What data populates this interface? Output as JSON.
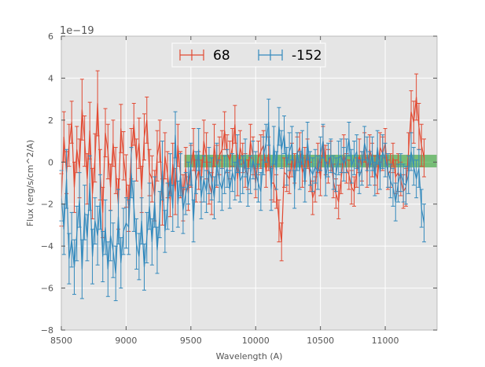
{
  "chart_data": {
    "type": "line",
    "title": "",
    "xlabel": "Wavelength (A)",
    "ylabel": "Flux (erg/s/cm^2/A)",
    "offset_text": "1e−19",
    "xlim": [
      8500,
      11400
    ],
    "ylim": [
      -8,
      6
    ],
    "xticks": [
      8500,
      9000,
      9500,
      10000,
      10500,
      11000
    ],
    "xtick_labels": [
      "8500",
      "9000",
      "9500",
      "10000",
      "10500",
      "11000"
    ],
    "yticks": [
      -8,
      -6,
      -4,
      -2,
      0,
      2,
      4,
      6
    ],
    "ytick_labels": [
      "−8",
      "−6",
      "−4",
      "−2",
      "0",
      "2",
      "4",
      "6"
    ],
    "grid": true,
    "legend_position": "top-center",
    "shaded_region": {
      "x": [
        9450,
        11400
      ],
      "y": [
        -0.25,
        0.35
      ],
      "color": "#2ca02c"
    },
    "series": [
      {
        "name": "68",
        "color": "#e24a33",
        "x_start": 8500,
        "x_step": 20,
        "values": [
          -1.8,
          1.2,
          -0.5,
          0.8,
          1.9,
          -1.2,
          0.6,
          -0.3,
          2.5,
          1.0,
          -0.8,
          1.5,
          -1.5,
          0.2,
          2.8,
          -0.6,
          -2.4,
          1.4,
          0.5,
          -1.2,
          0.9,
          -0.4,
          -2.0,
          1.6,
          0.3,
          -0.9,
          -2.2,
          0.4,
          1.8,
          0.1,
          0.9,
          -1.3,
          1.2,
          2.0,
          -0.5,
          -0.8,
          -1.6,
          0.3,
          1.0,
          -1.9,
          0.3,
          -0.6,
          -1.8,
          -0.1,
          -1.4,
          0.8,
          -0.6,
          -1.7,
          -0.3,
          -1.5,
          -0.2,
          0.6,
          -0.9,
          -0.4,
          -0.9,
          1.0,
          0.3,
          -1.0,
          -1.5,
          0.8,
          -0.2,
          0.3,
          0.6,
          1.5,
          0.4,
          0.1,
          0.7,
          1.8,
          -0.8,
          0.7,
          0.2,
          -0.4,
          -0.6,
          1.0,
          0.3,
          -1.0,
          0.2,
          0.5,
          0.8,
          -0.5,
          0.4,
          -1.0,
          -1.0,
          -1.4,
          -2.8,
          -3.8,
          -0.5,
          -0.6,
          -0.8,
          0.1,
          -0.3,
          0.4,
          0.7,
          -0.5,
          -0.1,
          0.4,
          -0.7,
          -1.7,
          -1.3,
          0.2,
          -0.8,
          1.0,
          0.1,
          -0.2,
          0.3,
          -0.9,
          -1.5,
          -1.9,
          -0.8,
          0.4,
          -0.3,
          -0.6,
          -1.2,
          -1.4,
          -0.5,
          0.3,
          -0.2,
          0.7,
          -0.5,
          0.6,
          0.1,
          -0.4,
          -0.8,
          0.7,
          0.4,
          0.9,
          -0.6,
          -0.4,
          0.2,
          -0.7,
          -0.5,
          -0.8,
          -1.4,
          -1.2,
          0.5,
          2.4,
          1.9,
          3.1,
          1.7,
          0.8,
          0.2
        ],
        "errors": [
          1.25,
          1.2,
          1.0,
          1.0,
          1.0,
          1.2,
          1.1,
          1.4,
          1.45,
          1.2,
          1.2,
          1.35,
          1.2,
          1.15,
          1.55,
          1.2,
          1.2,
          1.15,
          1.3,
          1.1,
          1.1,
          1.1,
          1.2,
          1.15,
          1.15,
          1.25,
          1.1,
          1.2,
          1.0,
          1.0,
          1.2,
          1.1,
          1.1,
          1.1,
          1.1,
          1.1,
          1.2,
          1.2,
          1.0,
          1.1,
          1.1,
          1.1,
          0.8,
          1.0,
          1.1,
          1.0,
          1.1,
          1.1,
          1.0,
          0.8,
          1.0,
          1.0,
          1.0,
          0.9,
          1.0,
          1.0,
          1.1,
          1.0,
          1.0,
          1.0,
          1.0,
          0.9,
          0.9,
          0.9,
          0.9,
          0.9,
          0.9,
          0.9,
          0.8,
          0.8,
          0.7,
          0.8,
          0.7,
          0.8,
          0.9,
          0.7,
          0.8,
          0.8,
          0.7,
          0.7,
          0.8,
          0.8,
          0.9,
          0.8,
          1.0,
          0.9,
          0.7,
          0.8,
          0.7,
          0.8,
          0.7,
          0.8,
          0.7,
          0.7,
          0.8,
          0.7,
          0.7,
          0.8,
          0.6,
          0.7,
          0.8,
          0.7,
          0.7,
          0.8,
          0.7,
          0.8,
          0.7,
          0.8,
          0.7,
          0.9,
          0.7,
          0.7,
          0.8,
          0.7,
          0.7,
          0.8,
          0.7,
          0.7,
          0.7,
          0.7,
          0.8,
          0.7,
          0.7,
          0.7,
          0.8,
          0.7,
          0.7,
          0.8,
          0.7,
          0.8,
          0.9,
          0.8,
          0.8,
          0.9,
          0.9,
          1.0,
          1.0,
          1.1,
          1.1,
          1.0,
          0.9
        ]
      },
      {
        "name": "-152",
        "color": "#348abd",
        "x_start": 8500,
        "x_step": 20,
        "values": [
          -1.6,
          -3.2,
          -0.8,
          -4.6,
          -3.7,
          -5.0,
          -3.4,
          -1.8,
          -5.1,
          -2.4,
          -3.6,
          -1.0,
          -4.5,
          -2.8,
          -3.5,
          -1.9,
          -4.5,
          -3.1,
          -5.1,
          -3.5,
          -4.2,
          -5.3,
          -2.6,
          -4.8,
          -3.3,
          -2.9,
          -3.1,
          -0.5,
          -2.1,
          -3.9,
          -4.5,
          -2.8,
          -5.0,
          -3.6,
          -2.1,
          -3.8,
          -1.9,
          -4.2,
          -2.5,
          -0.4,
          -3.3,
          -2.1,
          -0.6,
          -2.2,
          1.3,
          -2.0,
          -0.6,
          -2.3,
          -1.5,
          -1.0,
          -0.1,
          -2.8,
          -0.5,
          0.6,
          -1.7,
          -0.8,
          -1.4,
          -0.4,
          -0.8,
          -1.7,
          -0.1,
          -0.9,
          -1.3,
          -0.6,
          -0.3,
          -1.3,
          -0.5,
          -0.9,
          0.4,
          -0.9,
          -0.6,
          0.2,
          -1.2,
          -0.6,
          0.1,
          -0.4,
          -1.0,
          -1.4,
          0.3,
          0.9,
          1.9,
          -1.3,
          0.8,
          -0.4,
          1.7,
          0.6,
          1.3,
          -0.2,
          0.5,
          0.9,
          -1.3,
          0.5,
          -0.4,
          0.7,
          -1.1,
          1.0,
          -0.3,
          -0.6,
          -0.2,
          -0.5,
          0.4,
          1.0,
          -0.8,
          0.1,
          0.3,
          -0.5,
          -0.6,
          0.2,
          0.3,
          -0.1,
          0.3,
          1.1,
          -0.2,
          0.2,
          0.5,
          -0.7,
          -0.3,
          0.9,
          0.4,
          -0.3,
          0.4,
          -0.8,
          0.7,
          -0.5,
          0.5,
          0.1,
          -0.4,
          -0.9,
          -1.2,
          -1.9,
          -1.0,
          -0.5,
          -1.0,
          -1.1,
          -0.6,
          0.5,
          -0.2,
          -0.8,
          -0.3,
          -2.2,
          -2.9
        ],
        "errors": [
          1.2,
          1.2,
          1.4,
          1.2,
          1.3,
          1.3,
          1.3,
          1.3,
          1.4,
          1.3,
          1.1,
          1.3,
          1.3,
          1.1,
          1.4,
          1.3,
          1.2,
          1.3,
          1.3,
          1.2,
          1.3,
          1.3,
          1.3,
          1.2,
          1.1,
          1.2,
          1.3,
          1.2,
          1.2,
          1.2,
          1.1,
          1.1,
          1.1,
          1.2,
          1.1,
          1.1,
          1.2,
          1.1,
          1.1,
          1.4,
          1.0,
          1.1,
          1.0,
          1.1,
          1.1,
          1.1,
          1.0,
          1.1,
          1.0,
          1.0,
          1.0,
          1.0,
          1.0,
          1.0,
          1.0,
          1.1,
          1.0,
          1.1,
          1.0,
          1.0,
          1.0,
          1.0,
          1.0,
          0.9,
          0.9,
          0.9,
          0.9,
          0.9,
          0.9,
          1.0,
          0.9,
          0.9,
          0.9,
          0.9,
          0.9,
          0.9,
          0.9,
          0.9,
          0.9,
          0.9,
          1.1,
          1.0,
          0.9,
          0.9,
          0.9,
          0.9,
          0.9,
          0.9,
          0.9,
          0.8,
          0.9,
          0.9,
          0.9,
          0.8,
          0.8,
          0.9,
          0.8,
          0.8,
          0.8,
          0.8,
          0.8,
          0.8,
          0.8,
          0.8,
          0.8,
          0.8,
          0.8,
          0.8,
          0.8,
          0.8,
          0.8,
          0.8,
          0.8,
          0.8,
          0.8,
          0.8,
          0.8,
          0.8,
          0.8,
          0.8,
          0.8,
          0.8,
          0.8,
          0.8,
          0.8,
          0.8,
          0.8,
          0.8,
          0.9,
          0.9,
          0.9,
          0.9,
          0.9,
          0.9,
          0.9,
          0.9,
          0.9,
          0.9,
          0.9,
          0.9,
          0.9
        ]
      }
    ]
  }
}
